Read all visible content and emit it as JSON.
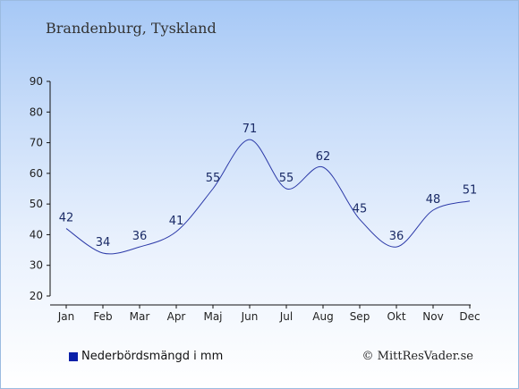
{
  "header": {
    "region": "Brandenburg, Tyskland"
  },
  "legend": {
    "label": "Nederbördsmängd i mm",
    "color": "#0a1fa8"
  },
  "credit": "© MittResVader.se",
  "chart_data": {
    "type": "line",
    "categories": [
      "Jan",
      "Feb",
      "Mar",
      "Apr",
      "Maj",
      "Jun",
      "Jul",
      "Aug",
      "Sep",
      "Okt",
      "Nov",
      "Dec"
    ],
    "series": [
      {
        "name": "Nederbördsmängd i mm",
        "values": [
          42,
          34,
          36,
          41,
          55,
          71,
          55,
          62,
          45,
          36,
          48,
          51
        ],
        "color": "#2c3aa8"
      }
    ],
    "ylim": [
      20,
      90
    ],
    "yticks": [
      20,
      30,
      40,
      50,
      60,
      70,
      80,
      90
    ],
    "grid": false,
    "legend_position": "bottom-left"
  }
}
